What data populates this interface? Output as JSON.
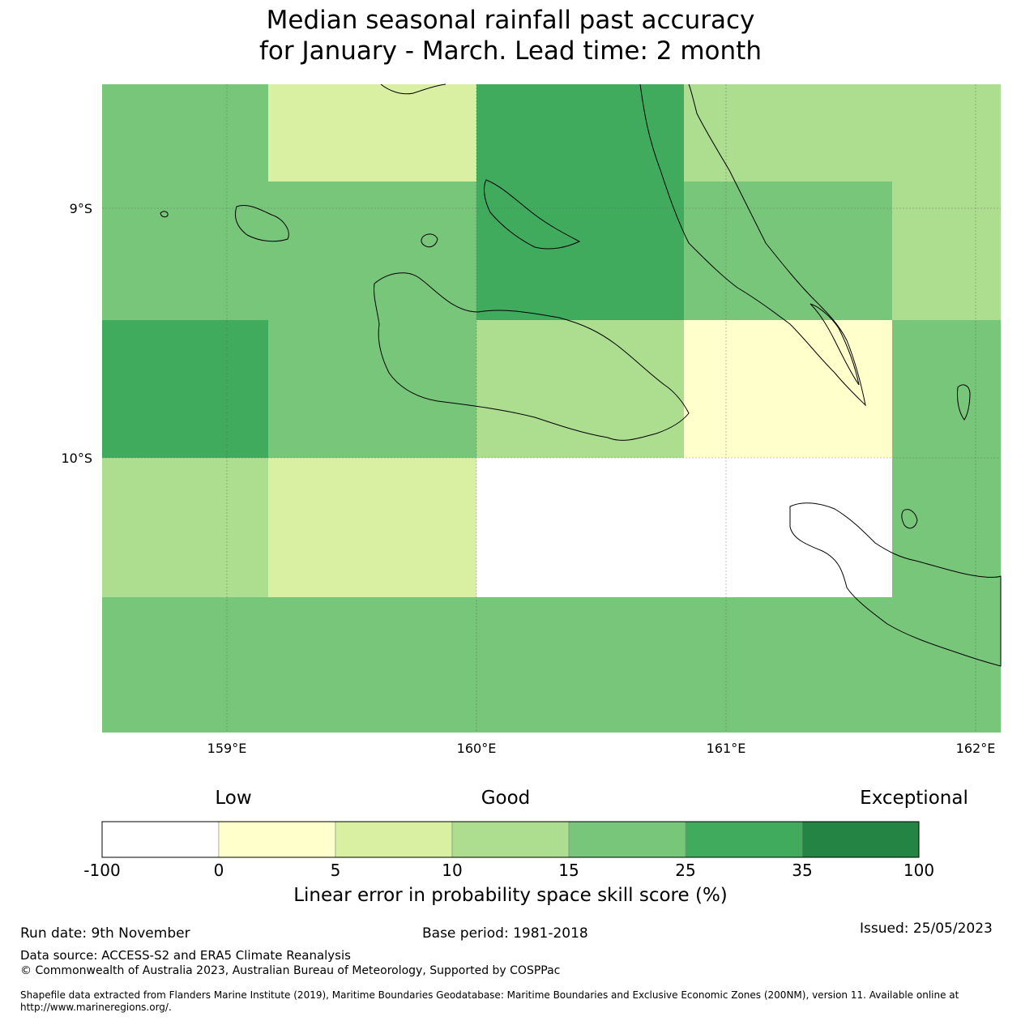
{
  "title": {
    "line1": "Median seasonal rainfall past accuracy",
    "line2": "for January - March. Lead time: 2 month"
  },
  "map": {
    "lat_labels": [
      "9°S",
      "10°S"
    ],
    "lon_labels": [
      "159°E",
      "160°E",
      "161°E",
      "162°E"
    ],
    "grid_skill_bins": [
      [
        "15-25",
        "5-10",
        "25-35",
        "10-15",
        "10-15"
      ],
      [
        "15-25",
        "15-25",
        "25-35",
        "15-25",
        "10-15"
      ],
      [
        "25-35",
        "15-25",
        "10-15",
        "0-5",
        "15-25"
      ],
      [
        "10-15",
        "5-10",
        "-100-0",
        "-100-0",
        "15-25"
      ],
      [
        "15-25",
        "15-25",
        "15-25",
        "15-25",
        "15-25"
      ]
    ]
  },
  "colorbar": {
    "headings": {
      "low": "Low",
      "good": "Good",
      "exceptional": "Exceptional"
    },
    "ticks": [
      "-100",
      "0",
      "5",
      "10",
      "15",
      "25",
      "35",
      "100"
    ],
    "colors": [
      "#ffffff",
      "#ffffcc",
      "#d9f0a3",
      "#addd8e",
      "#78c679",
      "#41ab5d",
      "#238443"
    ],
    "label": "Linear error in probability space skill score (%)"
  },
  "footer": {
    "run_date": "Run date: 9th November",
    "base_period": "Base period: 1981-2018",
    "issued": "Issued: 25/05/2023",
    "data_source": "Data source: ACCESS-S2 and ERA5 Climate Reanalysis",
    "copyright": "© Commonwealth of Australia 2023, Australian Bureau of Meteorology, Supported by COSPPac",
    "shapefile_line1": "Shapefile data extracted from Flanders Marine Institute (2019), Maritime Boundaries Geodatabase: Maritime Boundaries and Exclusive Economic Zones (200NM), version 11. Available online at",
    "shapefile_line2": "http://www.marineregions.org/."
  }
}
